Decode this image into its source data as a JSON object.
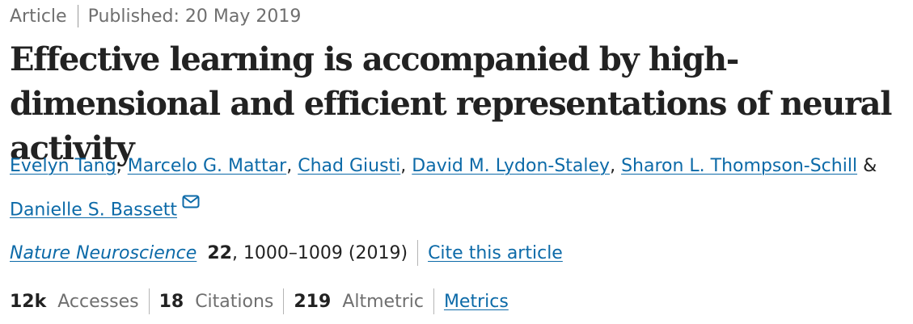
{
  "article": {
    "type": "Article",
    "published_label": "Published:",
    "published_date": "20 May 2019"
  },
  "title": "Effective learning is accompanied by high-dimensional and efficient representations of neural activity",
  "authors": [
    {
      "name": "Evelyn Tang"
    },
    {
      "name": "Marcelo G. Mattar"
    },
    {
      "name": "Chad Giusti"
    },
    {
      "name": "David M. Lydon-Staley"
    },
    {
      "name": "Sharon L. Thompson-Schill"
    },
    {
      "name": "Danielle S. Bassett"
    }
  ],
  "author_separator": ",",
  "author_last_joiner": "&",
  "icons": {
    "corresponding_author": "mail-icon"
  },
  "journal": {
    "name": "Nature Neuroscience",
    "volume": "22",
    "pages_year": ", 1000–1009 (2019)",
    "cite_link": "Cite this article"
  },
  "metrics": {
    "accesses_count": "12k",
    "accesses_label": "Accesses",
    "citations_count": "18",
    "citations_label": "Citations",
    "altmetric_count": "219",
    "altmetric_label": "Altmetric",
    "metrics_link": "Metrics"
  },
  "colors": {
    "link": "#0c6aa8",
    "text": "#222222",
    "muted": "#6f6f6f"
  }
}
